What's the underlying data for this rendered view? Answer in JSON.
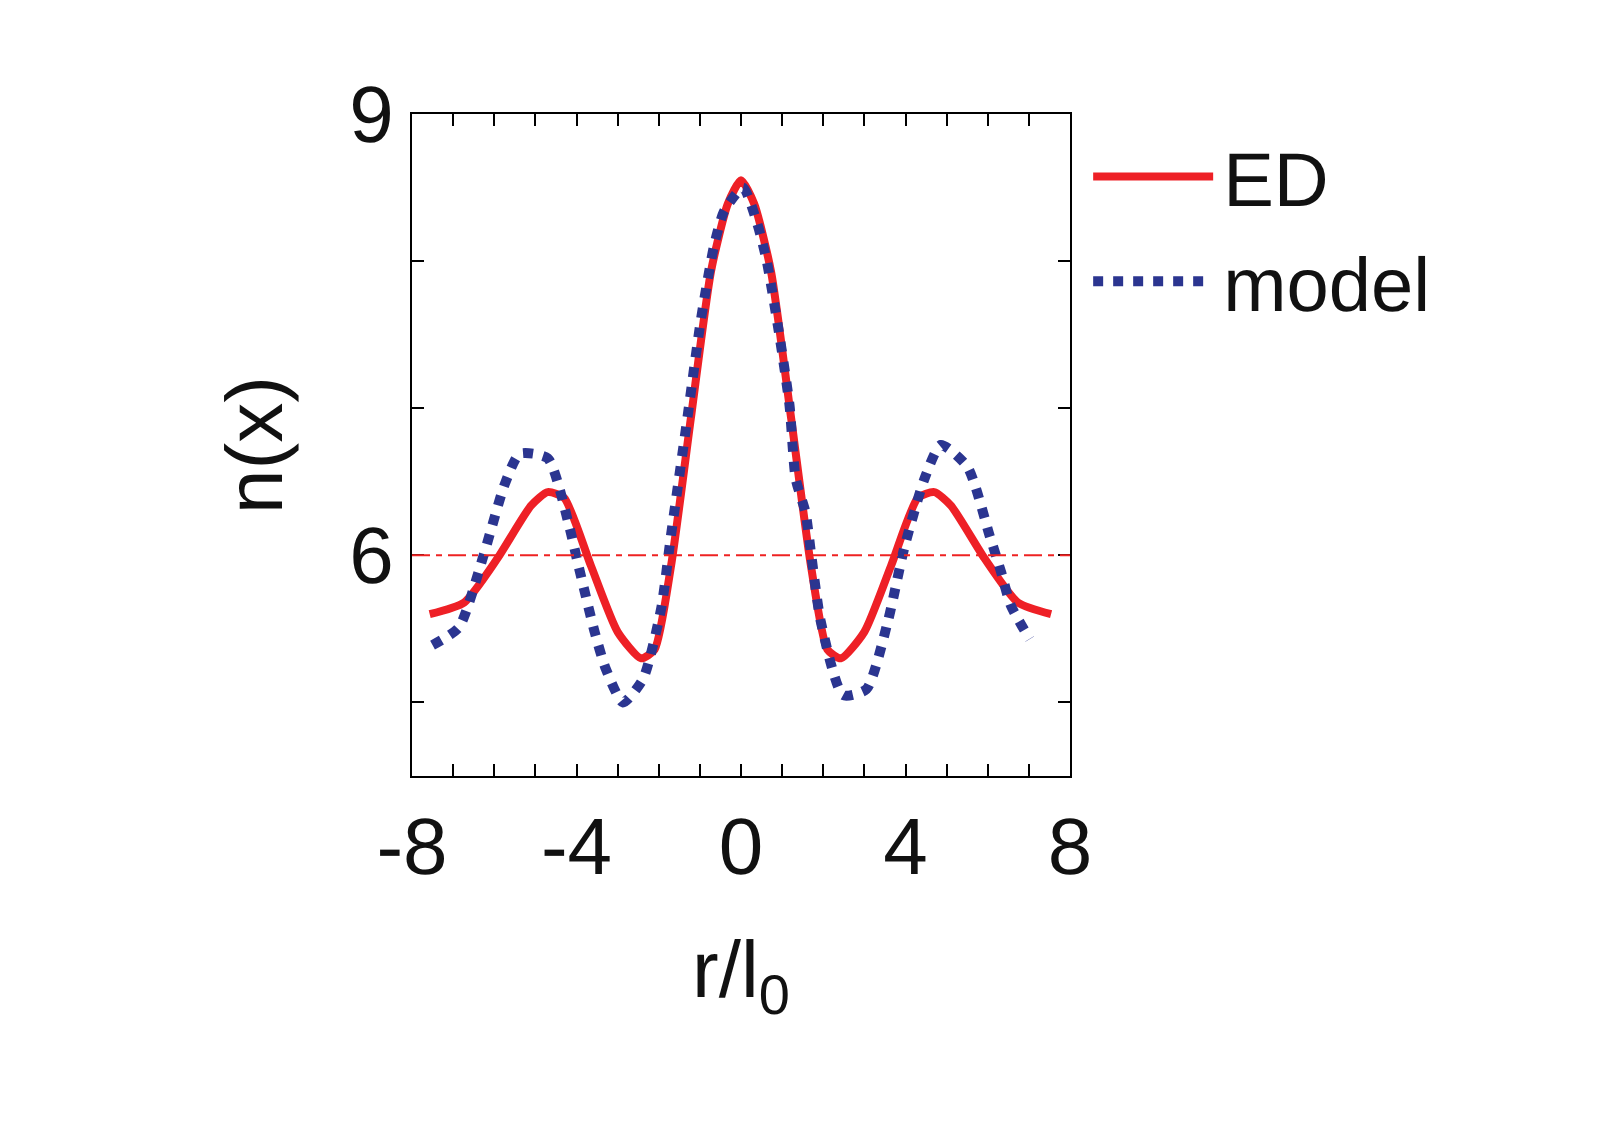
{
  "chart_data": {
    "type": "line",
    "xlabel": "r/l$_{0}$",
    "ylabel": "n(x)",
    "xlim": [
      -8,
      8
    ],
    "xticks": [
      -8,
      {
        "value": -7,
        "label": null
      },
      {
        "value": -6,
        "label": null
      },
      {
        "value": -5,
        "label": null
      },
      -4,
      {
        "value": -3,
        "label": null
      },
      {
        "value": -2,
        "label": null
      },
      {
        "value": -1,
        "label": null
      },
      0,
      {
        "value": 1,
        "label": null
      },
      {
        "value": 2,
        "label": null
      },
      {
        "value": 3,
        "label": null
      },
      4,
      {
        "value": 5,
        "label": null
      },
      {
        "value": 6,
        "label": null
      },
      {
        "value": 7,
        "label": null
      },
      8
    ],
    "ylim": [
      4.5,
      9
    ],
    "yticks": [
      {
        "value": 5,
        "label": null
      },
      6,
      {
        "value": 7,
        "label": null
      },
      {
        "value": 8,
        "label": null
      },
      9
    ],
    "legend": "top right",
    "marker": "none",
    "ref_lines": [
      {
        "axis": "y",
        "value": 6,
        "color": "#ee2222",
        "line_style": "dashdot"
      }
    ],
    "series": [
      {
        "name": "ED",
        "color": "#ee2026",
        "line_style": "solid",
        "x": [
          -7.57,
          -6.73,
          -5.92,
          -5.1,
          -4.7,
          -4.3,
          -3.65,
          -3.0,
          -2.43,
          -2.1,
          -1.7,
          -1.22,
          -0.73,
          -0.32,
          0,
          0.32,
          0.73,
          1.22,
          1.7,
          2.1,
          2.43,
          3.0,
          3.65,
          4.3,
          4.7,
          5.1,
          5.92,
          6.73,
          7.54
        ],
        "values": [
          5.6,
          5.68,
          5.98,
          6.34,
          6.43,
          6.39,
          5.93,
          5.48,
          5.3,
          5.36,
          5.93,
          6.93,
          7.93,
          8.39,
          8.55,
          8.39,
          7.93,
          6.93,
          5.93,
          5.36,
          5.3,
          5.48,
          5.93,
          6.39,
          6.43,
          6.34,
          5.98,
          5.68,
          5.6
        ]
      },
      {
        "name": "model",
        "color": "#2b3590",
        "line_style": "dotted",
        "x": [
          -7.5,
          -6.86,
          -6.27,
          -5.75,
          -5.38,
          -4.7,
          -4.17,
          -3.97,
          -3.55,
          -3.29,
          -2.87,
          -2.38,
          -1.94,
          -1.7,
          -1.33,
          -0.97,
          -0.65,
          -0.41,
          0.05,
          0.4,
          0.62,
          0.92,
          1.18,
          1.33,
          1.57,
          1.7,
          1.94,
          2.48,
          3.05,
          3.57,
          3.97,
          4.46,
          4.86,
          5.51,
          6.05,
          6.32,
          6.56,
          7.02
        ],
        "values": [
          5.39,
          5.51,
          5.99,
          6.48,
          6.69,
          6.66,
          6.19,
          5.95,
          5.47,
          5.23,
          5.0,
          5.16,
          5.64,
          6.14,
          6.88,
          7.61,
          8.11,
          8.34,
          8.5,
          8.25,
          8.01,
          7.52,
          7.02,
          6.52,
          6.29,
          6.02,
          5.55,
          5.05,
          5.09,
          5.55,
          6.05,
          6.52,
          6.75,
          6.6,
          6.13,
          5.89,
          5.66,
          5.43
        ]
      }
    ]
  }
}
